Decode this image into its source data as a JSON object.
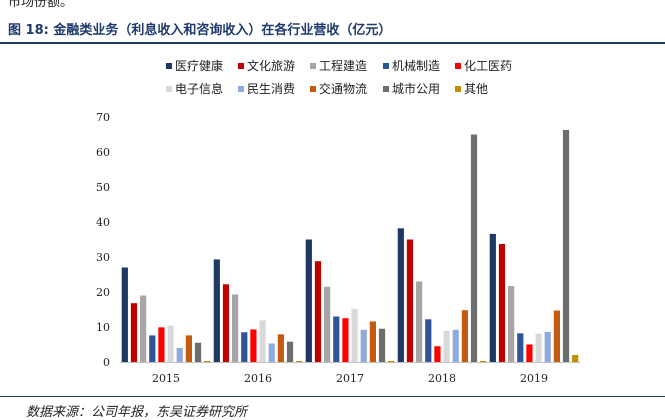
{
  "header": {
    "top_cut_text": "市场份额。",
    "figure_title": "图 18:  金融类业务（利息收入和咨询收入）在各行业营收（亿元）"
  },
  "footer": {
    "source": "数据来源：公司年报，东吴证券研究所"
  },
  "chart_data": {
    "type": "bar",
    "title": "",
    "xlabel": "",
    "ylabel": "",
    "ylim": [
      0,
      70
    ],
    "yticks": [
      0,
      10,
      20,
      30,
      40,
      50,
      60,
      70
    ],
    "grid": false,
    "legend_position": "top",
    "categories": [
      "2015",
      "2016",
      "2017",
      "2018",
      "2019"
    ],
    "series": [
      {
        "name": "医疗健康",
        "color": "#1f3864",
        "values": [
          27.0,
          29.3,
          35.0,
          38.2,
          36.6
        ]
      },
      {
        "name": "文化旅游",
        "color": "#c00000",
        "values": [
          16.8,
          22.2,
          28.8,
          35.0,
          33.7
        ]
      },
      {
        "name": "工程建造",
        "color": "#a6a6a6",
        "values": [
          19.0,
          19.3,
          21.5,
          23.0,
          21.7
        ]
      },
      {
        "name": "机械制造",
        "color": "#2e5597",
        "values": [
          7.6,
          8.5,
          13.0,
          12.2,
          8.2
        ]
      },
      {
        "name": "化工医药",
        "color": "#ff0000",
        "values": [
          9.9,
          9.3,
          12.5,
          4.5,
          5.0
        ]
      },
      {
        "name": "电子信息",
        "color": "#d9d9d9",
        "values": [
          10.4,
          11.9,
          15.2,
          8.9,
          8.1
        ]
      },
      {
        "name": "民生消费",
        "color": "#8faadc",
        "values": [
          4.0,
          5.3,
          9.2,
          9.2,
          8.6
        ]
      },
      {
        "name": "交通物流",
        "color": "#c55a11",
        "values": [
          7.6,
          7.9,
          11.6,
          14.8,
          14.7
        ]
      },
      {
        "name": "城市公用",
        "color": "#6d6d6d",
        "values": [
          5.5,
          5.8,
          9.5,
          65.0,
          66.3
        ]
      },
      {
        "name": "其他",
        "color": "#bf9000",
        "values": [
          0.3,
          0.3,
          0.3,
          0.3,
          2.0
        ]
      }
    ]
  }
}
